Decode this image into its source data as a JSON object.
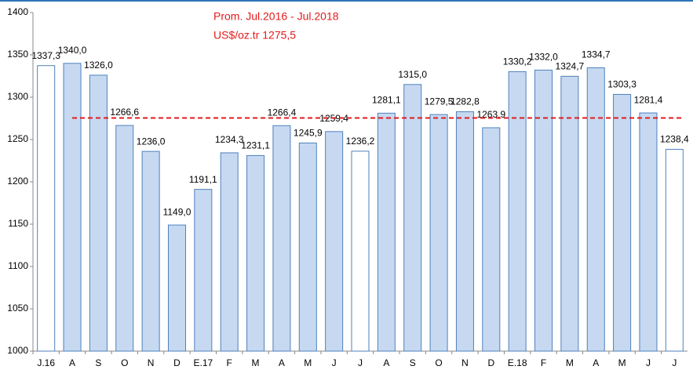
{
  "chart_data": {
    "type": "bar",
    "categories": [
      "J.16",
      "A",
      "S",
      "O",
      "N",
      "D",
      "E.17",
      "F",
      "M",
      "A",
      "M",
      "J",
      "J",
      "A",
      "S",
      "O",
      "N",
      "D",
      "E.18",
      "F",
      "M",
      "A",
      "M",
      "J",
      "J"
    ],
    "values": [
      1337.3,
      1340.0,
      1326.0,
      1266.6,
      1236.0,
      1149.0,
      1191.1,
      1234.3,
      1231.1,
      1266.4,
      1245.9,
      1259.4,
      1236.2,
      1281.1,
      1315.0,
      1279.5,
      1282.8,
      1263.9,
      1330.2,
      1332.0,
      1324.7,
      1334.7,
      1303.3,
      1281.4,
      1238.4
    ],
    "value_labels": [
      "1337,3",
      "1340,0",
      "1326,0",
      "1266,6",
      "1236,0",
      "1149,0",
      "1191,1",
      "1234,3",
      "1231,1",
      "1266,4",
      "1245,9",
      "1259,4",
      "1236,2",
      "1281,1",
      "1315,0",
      "1279,5",
      "1282,8",
      "1263,9",
      "1330,2",
      "1332,0",
      "1324,7",
      "1334,7",
      "1303,3",
      "1281,4",
      "1238,4"
    ],
    "colors": [
      "#ffffff",
      "#c6d9f1",
      "#c6d9f1",
      "#c6d9f1",
      "#c6d9f1",
      "#c6d9f1",
      "#c6d9f1",
      "#c6d9f1",
      "#c6d9f1",
      "#c6d9f1",
      "#c6d9f1",
      "#c6d9f1",
      "#ffffff",
      "#c6d9f1",
      "#c6d9f1",
      "#c6d9f1",
      "#c6d9f1",
      "#c6d9f1",
      "#c6d9f1",
      "#c6d9f1",
      "#c6d9f1",
      "#c6d9f1",
      "#c6d9f1",
      "#c6d9f1",
      "#ffffff"
    ],
    "edge_color": "#4f81bd",
    "ylim": [
      1000,
      1400
    ],
    "yticks": [
      1000,
      1050,
      1100,
      1150,
      1200,
      1250,
      1300,
      1350,
      1400
    ],
    "grid": false,
    "reference_line": {
      "value": 1275.5,
      "color": "#e31a1c",
      "annotation": [
        "Prom. Jul.2016 - Jul.2018",
        "US$/oz.tr 1275,5"
      ]
    }
  }
}
